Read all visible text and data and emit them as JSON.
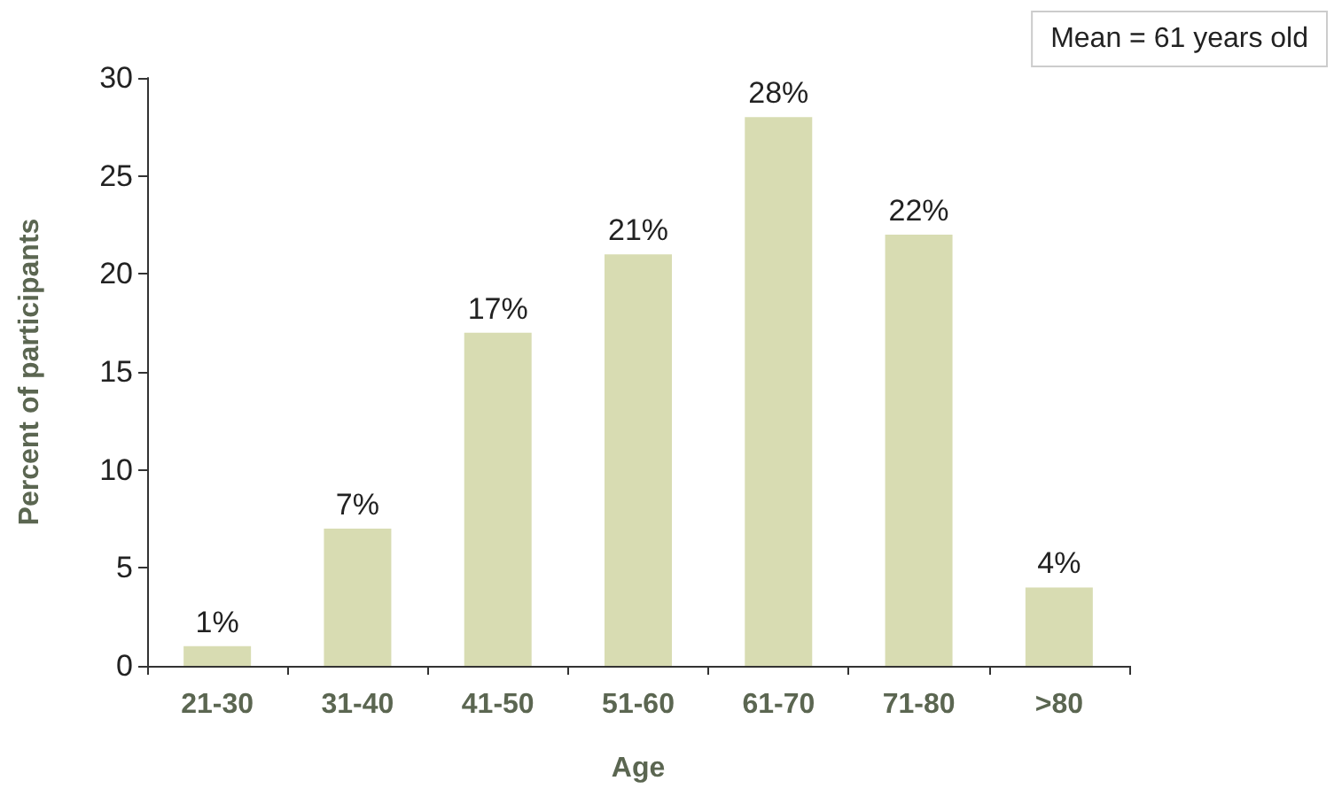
{
  "chart_data": {
    "type": "bar",
    "xlabel": "Age",
    "ylabel": "Percent of participants",
    "categories": [
      "21-30",
      "31-40",
      "41-50",
      "51-60",
      "61-70",
      "71-80",
      ">80"
    ],
    "values": [
      1,
      7,
      17,
      21,
      28,
      22,
      4
    ],
    "value_labels": [
      "1%",
      "7%",
      "17%",
      "21%",
      "28%",
      "22%",
      "4%"
    ],
    "color": "#d8dcb2",
    "ylim": [
      0,
      30
    ],
    "yticks": [
      0,
      5,
      10,
      15,
      20,
      25,
      30
    ],
    "annotations": [
      "Mean = 61 years old"
    ],
    "grid": false
  }
}
